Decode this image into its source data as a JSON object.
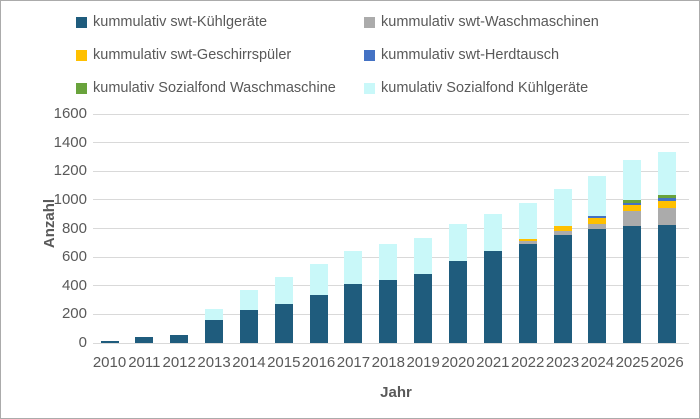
{
  "frame": {
    "background_color": "#FFFFFF",
    "border_color": "#ABABAB",
    "text_color": "#595959",
    "gridline_color": "#D9D9D9"
  },
  "legend": {
    "position": "top",
    "items": [
      {
        "label": "kummulativ swt-Kühlgeräte",
        "color": "#1F5C7D"
      },
      {
        "label": "kummulativ swt-Waschmaschinen",
        "color": "#ABABAB"
      },
      {
        "label": "kummulativ swt-Geschirrspüler",
        "color": "#FFC000"
      },
      {
        "label": "kummulativ swt-Herdtausch",
        "color": "#4472C4"
      },
      {
        "label": "kumulativ Sozialfond Waschmaschine",
        "color": "#69A33C"
      },
      {
        "label": "kumulativ Sozialfond Kühlgeräte",
        "color": "#C9F8F9"
      }
    ]
  },
  "chart_data": {
    "type": "bar",
    "stacked": true,
    "title": "",
    "xlabel": "Jahr",
    "ylabel": "Anzahl",
    "ylim": [
      0,
      1600
    ],
    "ytick_step": 200,
    "ytick_labels": [
      "0",
      "200",
      "400",
      "600",
      "800",
      "1000",
      "1200",
      "1400",
      "1600"
    ],
    "grid": true,
    "legend_position": "top",
    "categories": [
      "2010",
      "2011",
      "2012",
      "2013",
      "2014",
      "2015",
      "2016",
      "2017",
      "2018",
      "2019",
      "2020",
      "2021",
      "2022",
      "2023",
      "2024",
      "2025",
      "2026"
    ],
    "series": [
      {
        "name": "kummulativ swt-Kühlgeräte",
        "color": "#1F5C7D",
        "values": [
          15,
          40,
          55,
          160,
          230,
          275,
          335,
          410,
          440,
          480,
          575,
          645,
          690,
          755,
          800,
          815,
          825
        ]
      },
      {
        "name": "kummulativ swt-Waschmaschinen",
        "color": "#ABABAB",
        "values": [
          0,
          0,
          0,
          0,
          0,
          0,
          0,
          0,
          0,
          0,
          0,
          0,
          20,
          30,
          35,
          105,
          120
        ]
      },
      {
        "name": "kummulativ swt-Geschirrspüler",
        "color": "#FFC000",
        "values": [
          0,
          0,
          0,
          0,
          0,
          0,
          0,
          0,
          0,
          0,
          0,
          0,
          20,
          30,
          40,
          45,
          50
        ]
      },
      {
        "name": "kummulativ swt-Herdtausch",
        "color": "#4472C4",
        "values": [
          0,
          0,
          0,
          0,
          0,
          0,
          0,
          0,
          0,
          0,
          0,
          0,
          0,
          0,
          15,
          15,
          15
        ]
      },
      {
        "name": "kumulativ Sozialfond Waschmaschine",
        "color": "#69A33C",
        "values": [
          0,
          0,
          0,
          0,
          0,
          0,
          0,
          0,
          0,
          0,
          0,
          0,
          0,
          0,
          0,
          20,
          25
        ]
      },
      {
        "name": "kumulativ Sozialfond Kühlgeräte",
        "color": "#C9F8F9",
        "values": [
          0,
          0,
          0,
          80,
          140,
          185,
          215,
          235,
          250,
          255,
          255,
          255,
          245,
          260,
          275,
          280,
          300
        ]
      }
    ],
    "stack_totals": [
      15,
      40,
      55,
      240,
      370,
      460,
      550,
      645,
      690,
      735,
      830,
      900,
      975,
      1075,
      1165,
      1280,
      1335
    ]
  }
}
